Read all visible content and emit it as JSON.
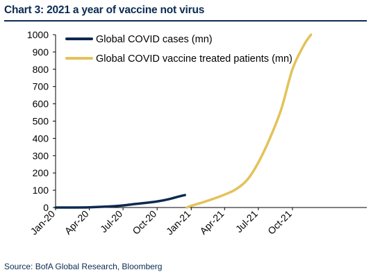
{
  "title": "Chart 3: 2021 a year of vaccine not virus",
  "source": "Source: BofA Global Research, Bloomberg",
  "colors": {
    "title": "#0a2a52",
    "cases": "#0d2a4f",
    "vaccine": "#e3c25a",
    "axis": "#000000"
  },
  "chart_data": {
    "type": "line",
    "title": "Chart 3: 2021 a year of vaccine not virus",
    "xlabel": "",
    "ylabel": "",
    "ylim": [
      0,
      1000
    ],
    "yticks": [
      0,
      100,
      200,
      300,
      400,
      500,
      600,
      700,
      800,
      900,
      1000
    ],
    "xticks": [
      "Jan-20",
      "Apr-20",
      "Jul-20",
      "Oct-20",
      "Jan-21",
      "Apr-21",
      "Jul-21",
      "Oct-21"
    ],
    "grid": false,
    "legend": "top-left",
    "series": [
      {
        "name": "Global COVID cases (mn)",
        "color": "#0d2a4f",
        "points": [
          [
            "2020-01-01",
            0
          ],
          [
            "2020-02-15",
            0
          ],
          [
            "2020-04-01",
            1
          ],
          [
            "2020-05-01",
            4
          ],
          [
            "2020-06-01",
            7
          ],
          [
            "2020-07-01",
            12
          ],
          [
            "2020-08-01",
            20
          ],
          [
            "2020-09-01",
            27
          ],
          [
            "2020-10-01",
            35
          ],
          [
            "2020-11-01",
            48
          ],
          [
            "2020-12-01",
            65
          ],
          [
            "2020-12-15",
            72
          ]
        ]
      },
      {
        "name": "Global COVID vaccine treated patients (mn)",
        "color": "#e3c25a",
        "points": [
          [
            "2020-12-20",
            0
          ],
          [
            "2021-01-01",
            10
          ],
          [
            "2021-02-01",
            30
          ],
          [
            "2021-03-01",
            50
          ],
          [
            "2021-04-01",
            75
          ],
          [
            "2021-05-01",
            105
          ],
          [
            "2021-06-01",
            160
          ],
          [
            "2021-07-01",
            260
          ],
          [
            "2021-08-01",
            400
          ],
          [
            "2021-09-01",
            570
          ],
          [
            "2021-10-01",
            800
          ],
          [
            "2021-11-01",
            940
          ],
          [
            "2021-11-20",
            1000
          ]
        ]
      }
    ]
  }
}
